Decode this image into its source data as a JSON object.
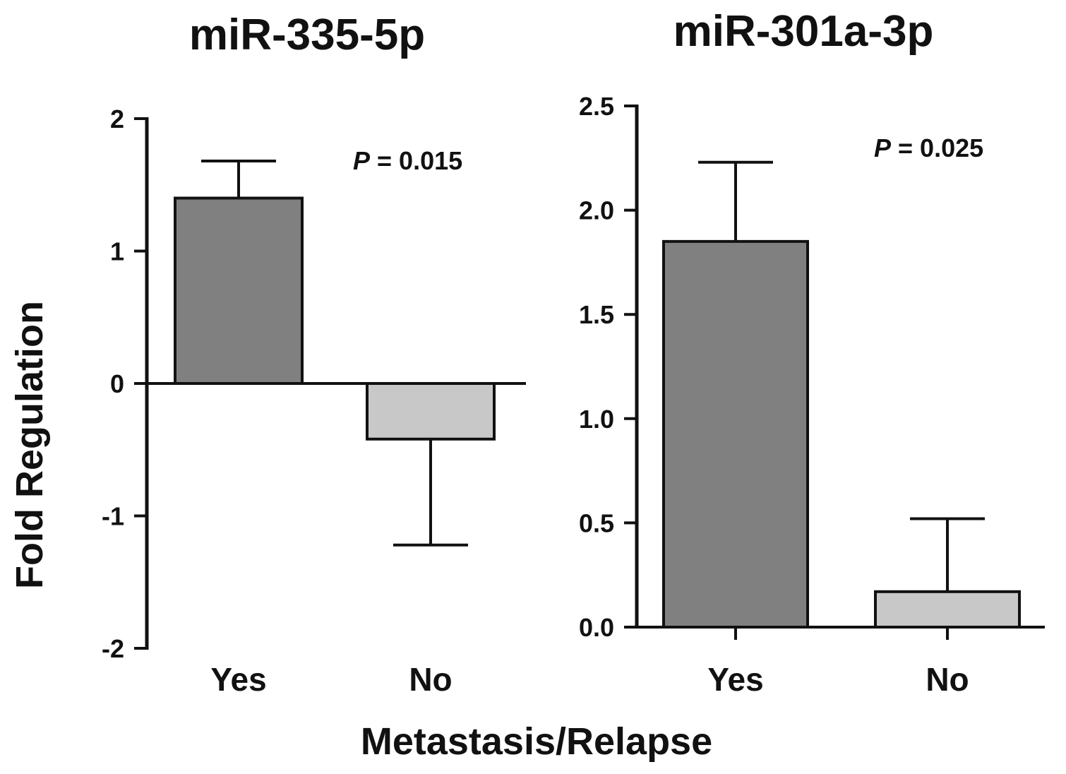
{
  "shared_ylabel": "Fold Regulation",
  "shared_xlabel": "Metastasis/Relapse",
  "colors": {
    "yes_bar": "#808080",
    "no_bar": "#c8c8c8",
    "stroke": "#111111"
  },
  "chart_data": [
    {
      "type": "bar",
      "title": "miR-335-5p",
      "categories": [
        "Yes",
        "No"
      ],
      "values": [
        1.4,
        -0.42
      ],
      "error_bars": [
        {
          "low": 1.4,
          "high": 1.68
        },
        {
          "low": -1.22,
          "high": -0.42
        }
      ],
      "ylim": [
        -2,
        2
      ],
      "yticks": [
        -2,
        -1,
        0,
        1,
        2
      ],
      "ytick_labels": [
        "-2",
        "-1",
        "0",
        "1",
        "2"
      ],
      "annotation": {
        "p_symbol": "P",
        "p_text": " = 0.015"
      },
      "xlabel": "Metastasis/Relapse",
      "ylabel": "Fold Regulation"
    },
    {
      "type": "bar",
      "title": "miR-301a-3p",
      "categories": [
        "Yes",
        "No"
      ],
      "values": [
        1.85,
        0.17
      ],
      "error_bars": [
        {
          "low": 1.85,
          "high": 2.23
        },
        {
          "low": 0.17,
          "high": 0.52
        }
      ],
      "ylim": [
        0,
        2.5
      ],
      "yticks": [
        0,
        0.5,
        1.0,
        1.5,
        2.0,
        2.5
      ],
      "ytick_labels": [
        "0.0",
        "0.5",
        "1.0",
        "1.5",
        "2.0",
        "2.5"
      ],
      "annotation": {
        "p_symbol": "P",
        "p_text": " = 0.025"
      },
      "xlabel": "Metastasis/Relapse",
      "ylabel": "Fold Regulation"
    }
  ]
}
